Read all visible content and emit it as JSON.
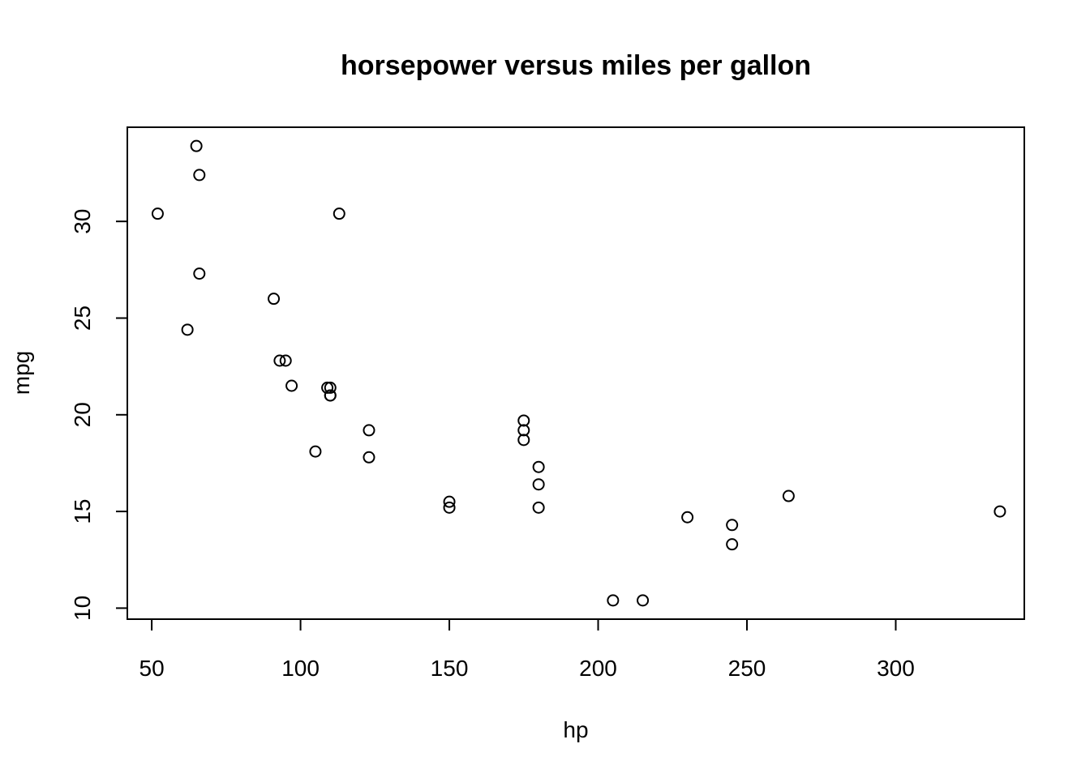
{
  "chart_data": {
    "type": "scatter",
    "title": "horsepower versus miles per gallon",
    "xlabel": "hp",
    "ylabel": "mpg",
    "xlim": [
      41.8,
      343.2
    ],
    "ylim": [
      9.43,
      34.87
    ],
    "x_ticks": [
      50,
      100,
      150,
      200,
      250,
      300
    ],
    "y_ticks": [
      10,
      15,
      20,
      25,
      30
    ],
    "grid": false,
    "legend": "none",
    "series": [
      {
        "x": [
          110,
          110,
          93,
          110,
          175,
          105,
          245,
          62,
          95,
          123,
          123,
          180,
          180,
          180,
          205,
          215,
          230,
          66,
          52,
          65,
          97,
          150,
          150,
          245,
          175,
          66,
          91,
          113,
          264,
          175,
          335,
          109
        ],
        "y": [
          21.0,
          21.0,
          22.8,
          21.4,
          18.7,
          18.1,
          14.3,
          24.4,
          22.8,
          19.2,
          17.8,
          16.4,
          17.3,
          15.2,
          10.4,
          10.4,
          14.7,
          32.4,
          30.4,
          33.9,
          21.5,
          15.5,
          15.2,
          13.3,
          19.2,
          27.3,
          26.0,
          30.4,
          15.8,
          19.7,
          15.0,
          21.4
        ]
      }
    ]
  }
}
